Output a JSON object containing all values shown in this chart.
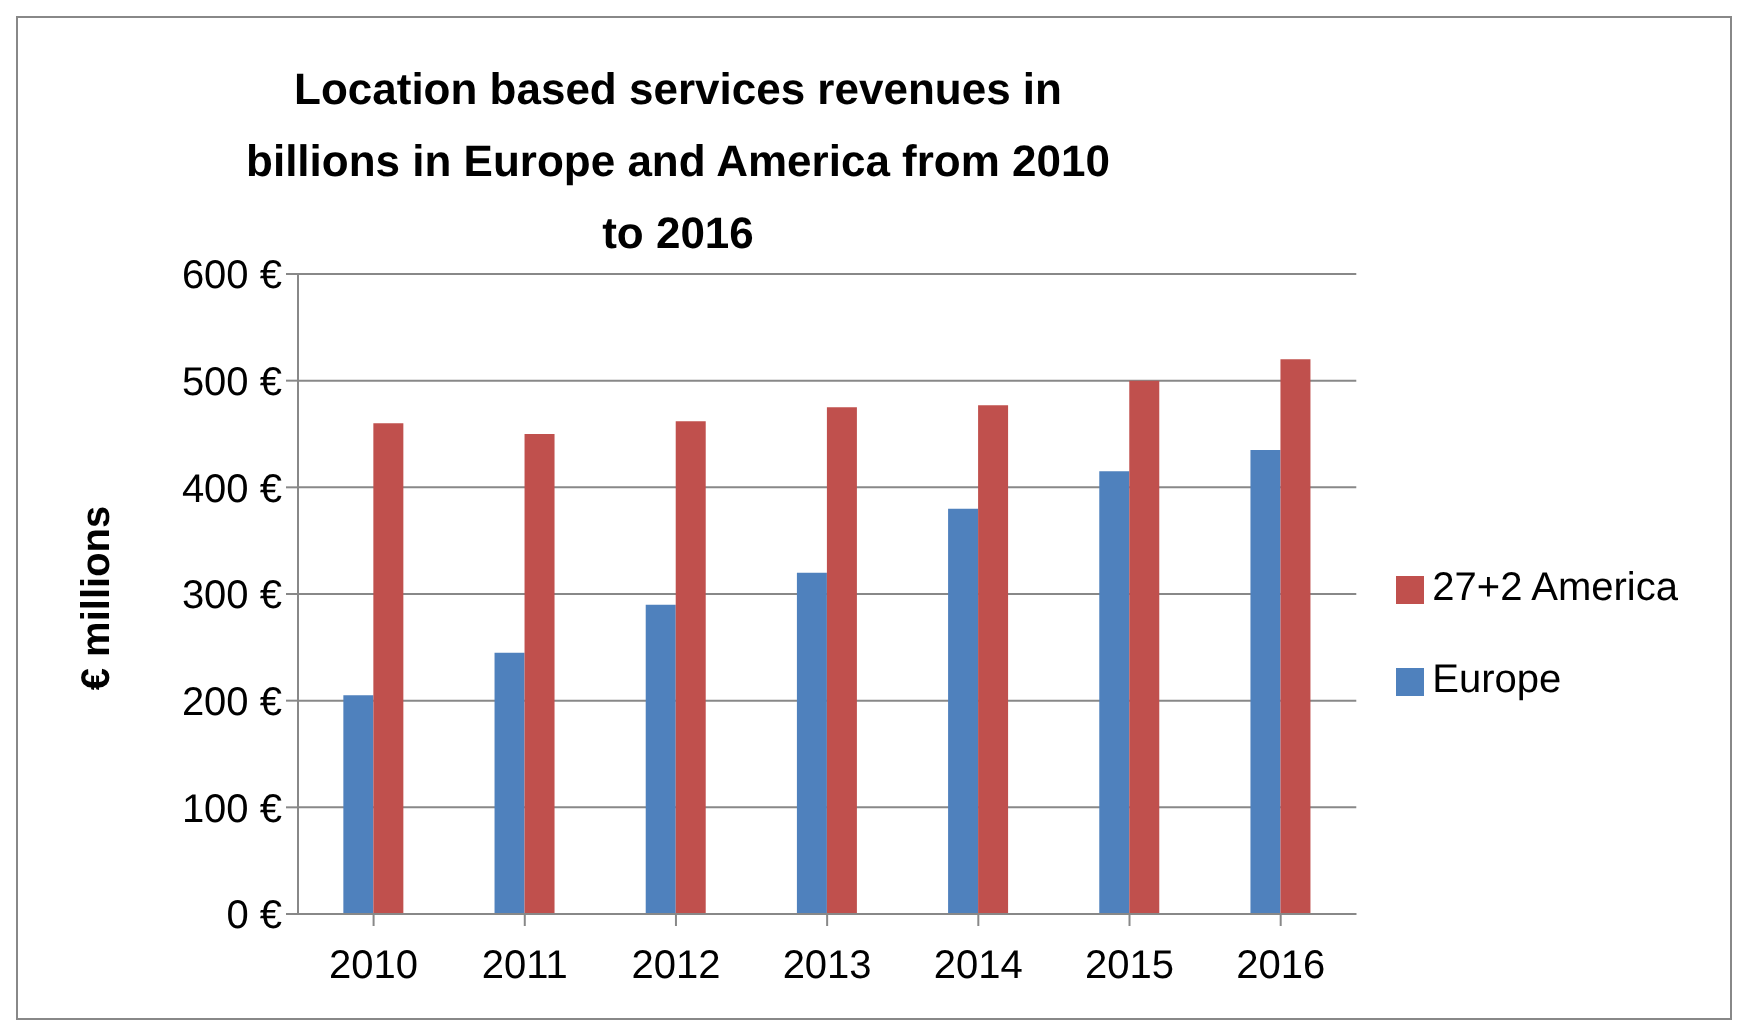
{
  "chart_data": {
    "type": "bar",
    "title": "Location based services revenues in billions in Europe and America from 2010 to 2016",
    "ylabel": "€ millions",
    "categories": [
      "2010",
      "2011",
      "2012",
      "2013",
      "2014",
      "2015",
      "2016"
    ],
    "series": [
      {
        "name": "Europe",
        "color": "#4f81bd",
        "values": [
          205,
          245,
          290,
          320,
          380,
          415,
          435
        ]
      },
      {
        "name": "27+2 America",
        "color": "#c0504d",
        "values": [
          460,
          450,
          462,
          475,
          477,
          500,
          520
        ]
      }
    ],
    "ylim": [
      0,
      600
    ],
    "yticks": [
      {
        "value": 0,
        "label": "0 €"
      },
      {
        "value": 100,
        "label": "100 €"
      },
      {
        "value": 200,
        "label": "200 €"
      },
      {
        "value": 300,
        "label": "300 €"
      },
      {
        "value": 400,
        "label": "400 €"
      },
      {
        "value": 500,
        "label": "500 €"
      },
      {
        "value": 600,
        "label": "600 €"
      }
    ],
    "grid": "y",
    "legend": "right"
  }
}
